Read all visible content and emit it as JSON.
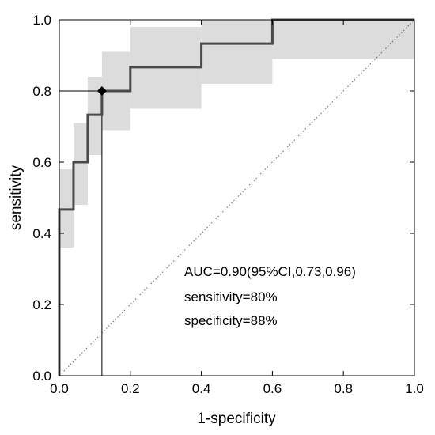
{
  "chart_data": {
    "type": "line",
    "xlabel": "1-specificity",
    "ylabel": "sensitivity",
    "xlim": [
      0,
      1
    ],
    "ylim": [
      0,
      1
    ],
    "xticks": [
      "0.0",
      "0.2",
      "0.4",
      "0.6",
      "0.8",
      "1.0"
    ],
    "yticks": [
      "0.0",
      "0.2",
      "0.4",
      "0.6",
      "0.8",
      "1.0"
    ],
    "grid": false,
    "colors": {
      "curve": "#4a4a4a",
      "band": "#dcdcdc",
      "diagonal": "#666666",
      "axis": "#000000"
    },
    "series": [
      {
        "x": [
          0,
          0,
          0.04,
          0.04,
          0.08,
          0.08,
          0.12,
          0.12,
          0.2,
          0.2,
          0.4,
          0.4,
          0.6,
          0.6,
          1.0
        ],
        "y": [
          0,
          0.467,
          0.467,
          0.6,
          0.6,
          0.733,
          0.733,
          0.8,
          0.8,
          0.867,
          0.867,
          0.933,
          0.933,
          1.0,
          1.0
        ]
      }
    ],
    "confidence_band": [
      {
        "x0": 0.0,
        "x1": 0.04,
        "lower": 0.36,
        "upper": 0.58
      },
      {
        "x0": 0.04,
        "x1": 0.08,
        "lower": 0.48,
        "upper": 0.71
      },
      {
        "x0": 0.08,
        "x1": 0.12,
        "lower": 0.62,
        "upper": 0.84
      },
      {
        "x0": 0.12,
        "x1": 0.2,
        "lower": 0.69,
        "upper": 0.91
      },
      {
        "x0": 0.2,
        "x1": 0.4,
        "lower": 0.75,
        "upper": 0.98
      },
      {
        "x0": 0.4,
        "x1": 0.6,
        "lower": 0.82,
        "upper": 1.0
      },
      {
        "x0": 0.6,
        "x1": 1.0,
        "lower": 0.89,
        "upper": 1.0
      }
    ],
    "diagonal": {
      "x": [
        0,
        1
      ],
      "y": [
        0,
        1
      ],
      "style": "dotted"
    },
    "cutoff_point": {
      "x": 0.12,
      "y": 0.8
    },
    "annotations": [
      "AUC=0.90(95%CI,0.73,0.96)",
      "sensitivity=80%",
      "specificity=88%"
    ]
  }
}
